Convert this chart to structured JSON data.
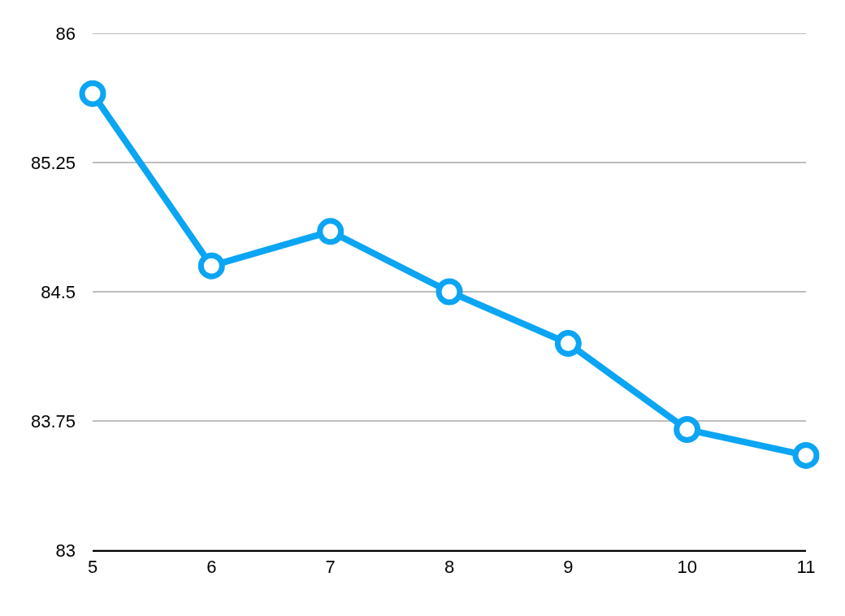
{
  "chart_data": {
    "type": "line",
    "x": [
      5,
      6,
      7,
      8,
      9,
      10,
      11
    ],
    "series": [
      {
        "color": "#0ba5f4",
        "values": [
          85.65,
          84.65,
          84.85,
          84.5,
          84.2,
          83.7,
          83.55
        ]
      }
    ],
    "xlim": [
      5,
      11
    ],
    "xticks": [
      5,
      6,
      7,
      8,
      9,
      10,
      11
    ],
    "ylim": [
      83,
      86
    ],
    "yticks": [
      83,
      83.75,
      84.5,
      85.25,
      86
    ],
    "grid": "y",
    "marker": "circle",
    "line_style": "solid"
  }
}
